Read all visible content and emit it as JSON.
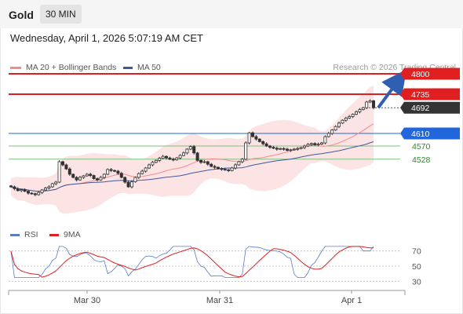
{
  "header": {
    "instrument": "Gold",
    "timeframe": "30 MIN"
  },
  "datetime": "Wednesday, April 1, 2026 5:07:19 AM CET",
  "price_legend": [
    {
      "label": "MA 20 + Bollinger Bands",
      "color": "#f28b8b"
    },
    {
      "label": "MA 50",
      "color": "#3c5a9a"
    }
  ],
  "credit": "Research © 2026 Trading Central",
  "price_levels": [
    {
      "value": 4800,
      "label": "4800",
      "style": "resistance-box",
      "color": "#e02020"
    },
    {
      "value": 4735,
      "label": "4735",
      "style": "resistance-box",
      "color": "#e02020"
    },
    {
      "value": 4692,
      "label": "4692",
      "style": "current-price",
      "color": "#333333"
    },
    {
      "value": 4610,
      "label": "4610",
      "style": "pivot-box",
      "color": "#2266dd"
    },
    {
      "value": 4570,
      "label": "4570",
      "style": "support",
      "color": "#2e8b2e"
    },
    {
      "value": 4528,
      "label": "4528",
      "style": "support",
      "color": "#2e8b2e"
    }
  ],
  "rsi_legend": [
    {
      "label": "RSI",
      "color": "#5b79c8"
    },
    {
      "label": "9MA",
      "color": "#e02020"
    }
  ],
  "rsi_ticks": [
    "70",
    "50",
    "30"
  ],
  "x_ticks": [
    "Mar 30",
    "Mar 31",
    "Apr 1"
  ],
  "chart_data": {
    "type": "candlestick",
    "price_range": [
      4330,
      4820
    ],
    "candles_close_approx": [
      4440,
      4434,
      4428,
      4431,
      4426,
      4420,
      4418,
      4415,
      4422,
      4430,
      4436,
      4440,
      4450,
      4455,
      4520,
      4510,
      4497,
      4480,
      4470,
      4462,
      4470,
      4475,
      4480,
      4476,
      4466,
      4462,
      4470,
      4480,
      4495,
      4492,
      4490,
      4483,
      4470,
      4455,
      4440,
      4456,
      4470,
      4482,
      4490,
      4500,
      4510,
      4518,
      4524,
      4531,
      4537,
      4532,
      4528,
      4526,
      4532,
      4540,
      4548,
      4560,
      4568,
      4548,
      4524,
      4518,
      4520,
      4512,
      4505,
      4502,
      4498,
      4496,
      4494,
      4492,
      4500,
      4510,
      4520,
      4528,
      4580,
      4612,
      4600,
      4592,
      4584,
      4577,
      4570,
      4566,
      4563,
      4560,
      4562,
      4560,
      4556,
      4558,
      4560,
      4562,
      4565,
      4570,
      4575,
      4578,
      4574,
      4576,
      4580,
      4600,
      4610,
      4621,
      4632,
      4643,
      4652,
      4659,
      4664,
      4671,
      4679,
      4686,
      4692,
      4710,
      4714,
      4692
    ],
    "rsi": {
      "levels": [
        70,
        50,
        30
      ],
      "range": [
        20,
        80
      ]
    },
    "projection": {
      "from": 4692,
      "to": 4800,
      "direction": "up"
    }
  }
}
